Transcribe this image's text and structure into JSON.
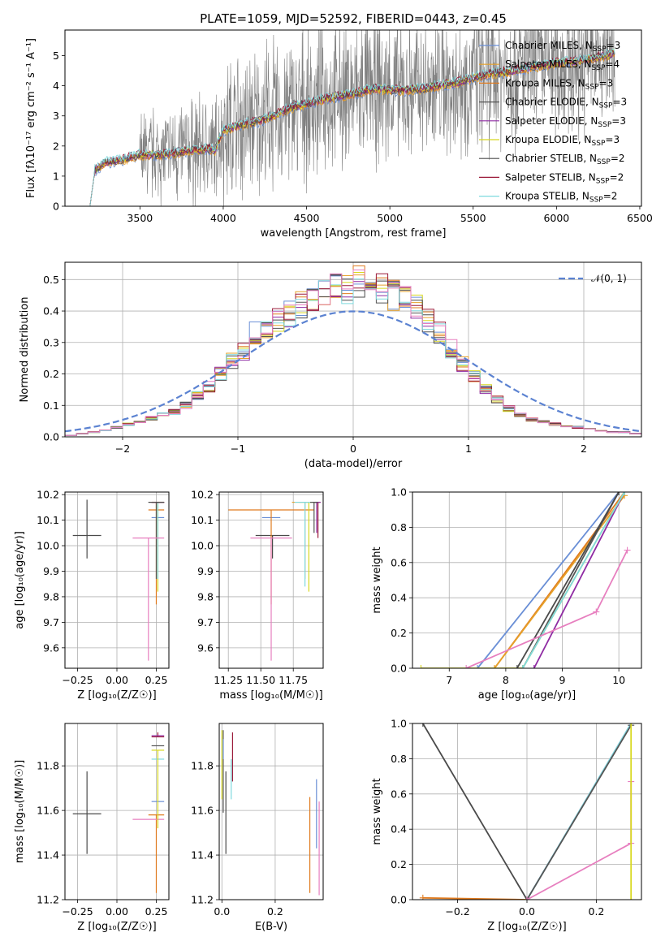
{
  "colors": {
    "Chabrier MILES": "#6a8fd6",
    "Salpeter MILES": "#e6a12a",
    "Kroupa MILES": "#e07b1f",
    "Chabrier ELODIE": "#555555",
    "Salpeter ELODIE": "#8f2ba3",
    "Kroupa ELODIE": "#d8d820",
    "Chabrier STELIB": "#4a4a4a",
    "Salpeter STELIB": "#9b1b3a",
    "Kroupa STELIB": "#7fd9de",
    "data": "#808080",
    "normal": "#5b82d1"
  },
  "chart_data": [
    {
      "id": "spectrum",
      "type": "line",
      "title": "PLATE=1059, MJD=52592, FIBERID=0443, z=0.45",
      "xlabel": "wavelength [Angstrom, rest frame]",
      "ylabel": "Flux [fλ10⁻¹⁷ erg cm⁻² s⁻¹ A⁻¹]",
      "xlim": [
        3050,
        6510
      ],
      "ylim": [
        0,
        5.85
      ],
      "xticks": [
        3500,
        4000,
        4500,
        5000,
        5500,
        6000,
        6500
      ],
      "yticks": [
        0,
        1,
        2,
        3,
        4,
        5
      ],
      "legend_position": "upper-right",
      "legend": [
        {
          "name": "Chabrier MILES",
          "sub": "SSP",
          "n": "3"
        },
        {
          "name": "Salpeter MILES",
          "sub": "SSP",
          "n": "4"
        },
        {
          "name": "Kroupa MILES",
          "sub": "SSP",
          "n": "3"
        },
        {
          "name": "Chabrier ELODIE",
          "sub": "SSP",
          "n": "3"
        },
        {
          "name": "Salpeter ELODIE",
          "sub": "SSP",
          "n": "3"
        },
        {
          "name": "Kroupa ELODIE",
          "sub": "SSP",
          "n": "3"
        },
        {
          "name": "Chabrier STELIB",
          "sub": "SSP",
          "n": "2"
        },
        {
          "name": "Salpeter STELIB",
          "sub": "SSP",
          "n": "2"
        },
        {
          "name": "Kroupa STELIB",
          "sub": "SSP",
          "n": "2"
        }
      ],
      "continuum_model": {
        "x": [
          3200,
          3230,
          3300,
          3400,
          3500,
          3600,
          3700,
          3800,
          3900,
          3950,
          4000,
          4100,
          4200,
          4300,
          4400,
          4500,
          4600,
          4700,
          4800,
          4900,
          5000,
          5100,
          5200,
          5300,
          5400,
          5500,
          5600,
          5700,
          5800,
          5900,
          6000,
          6100,
          6200,
          6300,
          6350
        ],
        "y": [
          0.0,
          1.2,
          1.45,
          1.55,
          1.7,
          1.7,
          1.75,
          1.85,
          1.9,
          1.85,
          2.5,
          2.7,
          2.8,
          3.0,
          3.25,
          3.4,
          3.55,
          3.65,
          3.75,
          3.9,
          3.85,
          3.85,
          3.9,
          4.0,
          4.1,
          4.25,
          4.4,
          4.45,
          4.55,
          4.65,
          4.75,
          4.8,
          4.9,
          5.0,
          5.1
        ]
      }
    },
    {
      "id": "residuals",
      "type": "bar",
      "xlabel": "(data-model)/error",
      "ylabel": "Normed distribution",
      "xlim": [
        -2.5,
        2.5
      ],
      "ylim": [
        0,
        0.555
      ],
      "xticks": [
        -2,
        -1,
        0,
        1,
        2
      ],
      "yticks": [
        0.0,
        0.1,
        0.2,
        0.3,
        0.4,
        0.5
      ],
      "legend": [
        {
          "name": "𝒩(0, 1)",
          "style": "dashed"
        }
      ],
      "bin_width": 0.1,
      "bin_start": -2.5,
      "histogram": [
        0.005,
        0.01,
        0.015,
        0.02,
        0.03,
        0.04,
        0.05,
        0.06,
        0.07,
        0.08,
        0.1,
        0.13,
        0.16,
        0.2,
        0.24,
        0.27,
        0.33,
        0.35,
        0.37,
        0.39,
        0.42,
        0.44,
        0.46,
        0.47,
        0.47,
        0.49,
        0.5,
        0.47,
        0.45,
        0.44,
        0.41,
        0.37,
        0.33,
        0.28,
        0.23,
        0.19,
        0.15,
        0.12,
        0.09,
        0.07,
        0.055,
        0.05,
        0.04,
        0.035,
        0.03,
        0.025,
        0.02,
        0.015,
        0.015,
        0.01
      ]
    },
    {
      "id": "age-vs-z",
      "type": "scatter",
      "xlabel": "Z [log₁₀(Z/Z☉)]",
      "ylabel": "age  [log₁₀(age/yr)]",
      "xlim": [
        -0.33,
        0.33
      ],
      "ylim": [
        9.52,
        10.21
      ],
      "xticks": [
        -0.25,
        0.0,
        0.25
      ],
      "yticks": [
        9.6,
        9.7,
        9.8,
        9.9,
        10.0,
        10.1,
        10.2
      ],
      "points": [
        {
          "model": "Chabrier STELIB",
          "x": -0.19,
          "xerr": 0.09,
          "y": 10.04,
          "yerr_lo": 0.09,
          "yerr_hi": 0.14
        },
        {
          "model": "Chabrier MILES",
          "x": 0.26,
          "xerr": 0.04,
          "y": 10.11,
          "yerr_lo": 0.0,
          "yerr_hi": 0.0
        },
        {
          "model": "Kroupa MILES",
          "x": 0.25,
          "xerr": 0.05,
          "y": 10.14,
          "yerr_lo": 0.37,
          "yerr_hi": 0.03
        },
        {
          "model": "Salpeter MILES",
          "x": 0.26,
          "xerr": 0.04,
          "y": 10.17,
          "yerr_lo": 0.3,
          "yerr_hi": 0.0
        },
        {
          "model": "Kroupa ELODIE",
          "x": 0.26,
          "xerr": 0.04,
          "y": 10.17,
          "yerr_lo": 0.35,
          "yerr_hi": 0.0
        },
        {
          "model": "Chabrier ELODIE",
          "x": 0.25,
          "xerr": 0.05,
          "y": 10.17,
          "yerr_lo": 0.3,
          "yerr_hi": 0.0
        },
        {
          "model": "Kroupa STELIB",
          "x": 0.26,
          "xerr": 0.04,
          "y": 10.17,
          "yerr_lo": 0.3,
          "yerr_hi": 0.0
        },
        {
          "model": "Salpeter ELODIE",
          "x": 0.26,
          "xerr": 0.04,
          "y": 10.17,
          "yerr_lo": 0.0,
          "yerr_hi": 0.0
        },
        {
          "model": "Salpeter STELIB",
          "x": 0.26,
          "xerr": 0.04,
          "y": 10.17,
          "yerr_lo": 0.0,
          "yerr_hi": 0.0
        },
        {
          "model": "Chabrier STELIB 2",
          "x": 0.25,
          "xerr": 0.05,
          "y": 10.17,
          "yerr_lo": 0.0,
          "yerr_hi": 0.0
        },
        {
          "model": "pink",
          "x": 0.2,
          "xerr": 0.1,
          "y": 10.03,
          "yerr_lo": 0.48,
          "yerr_hi": 0.0
        }
      ]
    },
    {
      "id": "age-vs-mass",
      "type": "scatter",
      "xlabel": "mass [log₁₀(M/M☉)]",
      "xlim": [
        11.18,
        11.98
      ],
      "ylim": [
        9.52,
        10.21
      ],
      "xticks": [
        11.25,
        11.5,
        11.75
      ],
      "xtick_labels": [
        "11.25",
        "11.50",
        "11.75"
      ],
      "yticks": [
        9.6,
        9.7,
        9.8,
        9.9,
        10.0,
        10.1,
        10.2
      ],
      "points": [
        {
          "model": "Chabrier STELIB",
          "x": 11.59,
          "xerr": 0.13,
          "y": 10.04,
          "yerr_lo": 0.09,
          "yerr_hi": 0.0
        },
        {
          "model": "Chabrier MILES",
          "x": 11.58,
          "xerr": 0.07,
          "y": 10.11,
          "yerr_lo": 0.0,
          "yerr_hi": 0.0
        },
        {
          "model": "Kroupa MILES",
          "x": 11.58,
          "xerr": 0.33,
          "y": 10.14,
          "yerr_lo": 0.37,
          "yerr_hi": 0.0
        },
        {
          "model": "pink",
          "x": 11.58,
          "xerr": 0.16,
          "y": 10.03,
          "yerr_lo": 0.48,
          "yerr_hi": 0.0
        },
        {
          "model": "Salpeter MILES",
          "x": 11.84,
          "xerr": 0.1,
          "y": 10.17,
          "yerr_lo": 0.3,
          "yerr_hi": 0.0
        },
        {
          "model": "Kroupa ELODIE",
          "x": 11.87,
          "xerr": 0.08,
          "y": 10.17,
          "yerr_lo": 0.35,
          "yerr_hi": 0.0
        },
        {
          "model": "Kroupa STELIB",
          "x": 11.84,
          "xerr": 0.08,
          "y": 10.17,
          "yerr_lo": 0.33,
          "yerr_hi": 0.0
        },
        {
          "model": "Salpeter STELIB",
          "x": 11.94,
          "xerr": 0.02,
          "y": 10.17,
          "yerr_lo": 0.14,
          "yerr_hi": 0.0
        },
        {
          "model": "Salpeter ELODIE",
          "x": 11.93,
          "xerr": 0.03,
          "y": 10.17,
          "yerr_lo": 0.12,
          "yerr_hi": 0.0
        },
        {
          "model": "Chabrier ELODIE",
          "x": 11.91,
          "xerr": 0.03,
          "y": 10.17,
          "yerr_lo": 0.12,
          "yerr_hi": 0.0
        }
      ]
    },
    {
      "id": "massweight-vs-age",
      "type": "line",
      "xlabel": "age  [log₁₀(age/yr)]",
      "ylabel": "mass weight",
      "xlim": [
        6.35,
        10.4
      ],
      "ylim": [
        0,
        1.0
      ],
      "xticks": [
        7,
        8,
        9,
        10
      ],
      "yticks": [
        0.0,
        0.2,
        0.4,
        0.6,
        0.8,
        1.0
      ],
      "series": [
        {
          "model": "Chabrier MILES",
          "x": [
            7.5,
            10.0
          ],
          "y": [
            0.0,
            1.0
          ]
        },
        {
          "model": "Kroupa MILES",
          "x": [
            7.8,
            10.1
          ],
          "y": [
            0.0,
            1.0
          ]
        },
        {
          "model": "Salpeter MILES",
          "x": [
            7.8,
            10.1
          ],
          "y": [
            0.0,
            0.98
          ]
        },
        {
          "model": "Chabrier ELODIE",
          "x": [
            8.3,
            10.0
          ],
          "y": [
            0.0,
            1.0
          ]
        },
        {
          "model": "Salpeter ELODIE",
          "x": [
            8.5,
            10.1
          ],
          "y": [
            0.0,
            1.0
          ]
        },
        {
          "model": "Kroupa ELODIE",
          "x": [
            6.5,
            8.3,
            10.1
          ],
          "y": [
            0.0,
            0.0,
            1.0
          ]
        },
        {
          "model": "Chabrier STELIB",
          "x": [
            8.2,
            10.0
          ],
          "y": [
            0.0,
            1.0
          ]
        },
        {
          "model": "Kroupa STELIB",
          "x": [
            8.3,
            10.1
          ],
          "y": [
            0.0,
            1.0
          ]
        },
        {
          "model": "pink",
          "x": [
            7.3,
            9.6,
            10.15
          ],
          "y": [
            0.0,
            0.32,
            0.67
          ]
        }
      ]
    },
    {
      "id": "mass-vs-z",
      "type": "scatter",
      "xlabel": "Z [log₁₀(Z/Z☉)]",
      "ylabel": "mass [log₁₀(M/M☉)]",
      "xlim": [
        -0.33,
        0.33
      ],
      "ylim": [
        11.2,
        11.99
      ],
      "xticks": [
        -0.25,
        0.0,
        0.25
      ],
      "yticks": [
        11.2,
        11.4,
        11.6,
        11.8
      ],
      "points": [
        {
          "model": "Chabrier STELIB",
          "x": -0.19,
          "xerr": 0.09,
          "y": 11.585,
          "yerr_lo": 0.18,
          "yerr_hi": 0.19
        },
        {
          "model": "Chabrier MILES",
          "x": 0.26,
          "xerr": 0.04,
          "y": 11.64,
          "yerr_lo": 0.0,
          "yerr_hi": 0.0
        },
        {
          "model": "Kroupa MILES",
          "x": 0.25,
          "xerr": 0.05,
          "y": 11.58,
          "yerr_lo": 0.35,
          "yerr_hi": 0.0
        },
        {
          "model": "pink",
          "x": 0.2,
          "xerr": 0.1,
          "y": 11.56,
          "yerr_lo": 0.0,
          "yerr_hi": 0.0
        },
        {
          "model": "Kroupa STELIB",
          "x": 0.26,
          "xerr": 0.04,
          "y": 11.83,
          "yerr_lo": 0.0,
          "yerr_hi": 0.0
        },
        {
          "model": "Kroupa ELODIE",
          "x": 0.26,
          "xerr": 0.04,
          "y": 11.87,
          "yerr_lo": 0.35,
          "yerr_hi": 0.0
        },
        {
          "model": "Chabrier ELODIE",
          "x": 0.26,
          "xerr": 0.04,
          "y": 11.89,
          "yerr_lo": 0.0,
          "yerr_hi": 0.0
        },
        {
          "model": "Salpeter STELIB",
          "x": 0.26,
          "xerr": 0.04,
          "y": 11.93,
          "yerr_lo": 0.0,
          "yerr_hi": 0.02
        },
        {
          "model": "Salpeter ELODIE",
          "x": 0.26,
          "xerr": 0.04,
          "y": 11.935,
          "yerr_lo": 0.0,
          "yerr_hi": 0.0
        }
      ]
    },
    {
      "id": "mass-vs-ebv",
      "type": "scatter",
      "xlabel": "E(B-V)",
      "xlim": [
        -0.01,
        0.38
      ],
      "ylim": [
        11.2,
        11.99
      ],
      "xticks": [
        0.0,
        0.2
      ],
      "yticks": [
        11.2,
        11.4,
        11.6,
        11.8
      ],
      "points": [
        {
          "model": "Kroupa ELODIE",
          "x": 0.0,
          "y": 11.87,
          "yerr_lo": 0.22,
          "yerr_hi": 0.09
        },
        {
          "model": "Chabrier ELODIE",
          "x": 0.005,
          "y": 11.89,
          "yerr_lo": 0.3,
          "yerr_hi": 0.07
        },
        {
          "model": "Chabrier STELIB",
          "x": 0.015,
          "y": 11.585,
          "yerr_lo": 0.18,
          "yerr_hi": 0.19
        },
        {
          "model": "Kroupa STELIB",
          "x": 0.035,
          "y": 11.83,
          "yerr_lo": 0.18,
          "yerr_hi": 0.0
        },
        {
          "model": "Salpeter STELIB",
          "x": 0.04,
          "y": 11.93,
          "yerr_lo": 0.2,
          "yerr_hi": 0.02
        },
        {
          "model": "Chabrier MILES",
          "x": 0.005,
          "y": 11.88,
          "yerr_lo": 0.05,
          "yerr_hi": 0.04
        },
        {
          "model": "Kroupa MILES",
          "x": 0.33,
          "y": 11.58,
          "yerr_lo": 0.35,
          "yerr_hi": 0.08
        },
        {
          "model": "Chabrier MILES 2",
          "x": 0.355,
          "y": 11.64,
          "yerr_lo": 0.21,
          "yerr_hi": 0.1
        },
        {
          "model": "pink",
          "x": 0.365,
          "y": 11.56,
          "yerr_lo": 0.34,
          "yerr_hi": 0.08
        }
      ]
    },
    {
      "id": "massweight-vs-z",
      "type": "line",
      "xlabel": "Z [log₁₀(Z/Z☉)]",
      "ylabel": "mass weight",
      "xlim": [
        -0.33,
        0.33
      ],
      "ylim": [
        0,
        1.0
      ],
      "xticks": [
        -0.2,
        0.0,
        0.2
      ],
      "yticks": [
        0.0,
        0.2,
        0.4,
        0.6,
        0.8,
        1.0
      ],
      "series": [
        {
          "model": "Chabrier STELIB",
          "x": [
            -0.3,
            0.0
          ],
          "y": [
            1.0,
            0.0
          ]
        },
        {
          "model": "Kroupa MILES",
          "x": [
            -0.3,
            0.0
          ],
          "y": [
            0.01,
            0.0
          ]
        },
        {
          "model": "Chabrier MILES",
          "x": [
            0.0,
            0.3
          ],
          "y": [
            0.0,
            1.0
          ]
        },
        {
          "model": "Kroupa STELIB",
          "x": [
            0.0,
            0.3
          ],
          "y": [
            0.0,
            1.0
          ]
        },
        {
          "model": "Chabrier ELODIE",
          "x": [
            0.0,
            0.3
          ],
          "y": [
            0.0,
            0.99
          ]
        },
        {
          "model": "pink",
          "x": [
            0.0,
            0.3,
            0.3
          ],
          "y": [
            0.0,
            0.32,
            0.67
          ]
        },
        {
          "model": "Kroupa ELODIE",
          "x": [
            0.3,
            0.3
          ],
          "y": [
            0.0,
            1.0
          ]
        }
      ]
    }
  ]
}
